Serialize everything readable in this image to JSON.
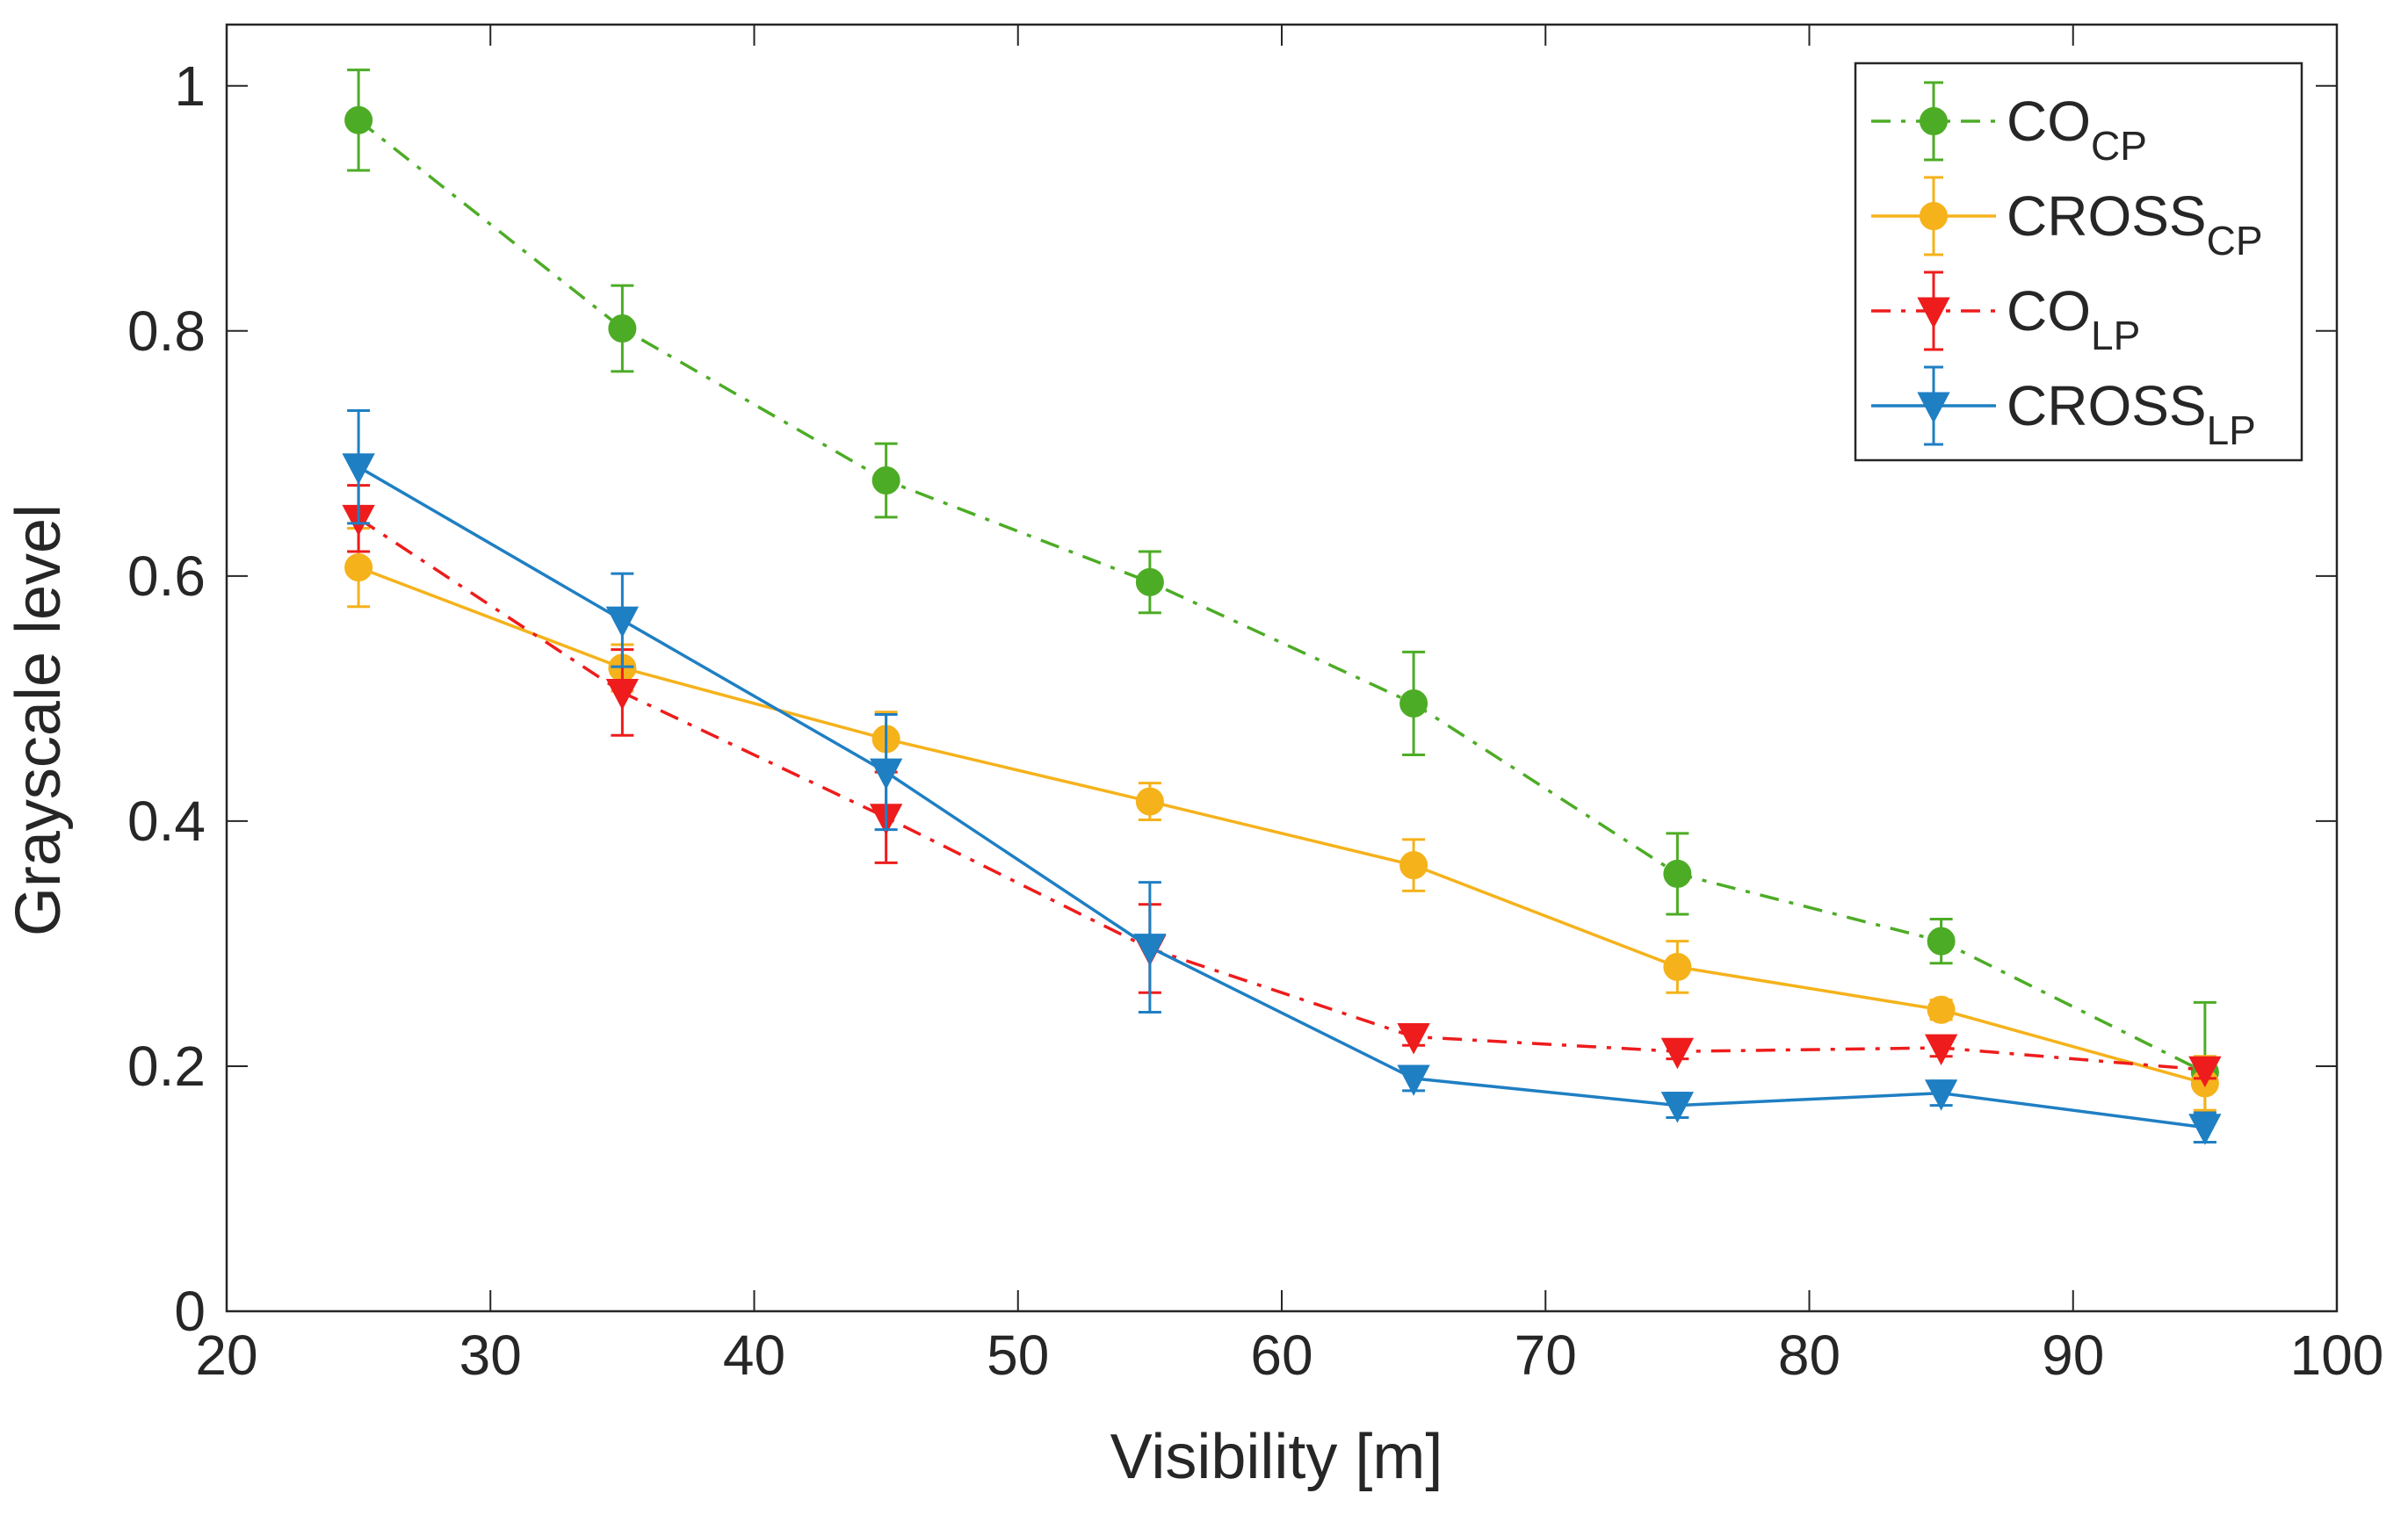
{
  "chart_data": {
    "type": "line",
    "title": "",
    "xlabel": "Visibility [m]",
    "ylabel": "Grayscale level",
    "xlim": [
      20,
      100
    ],
    "ylim": [
      0,
      1.05
    ],
    "x_ticks": [
      20,
      30,
      40,
      50,
      60,
      70,
      80,
      90,
      100
    ],
    "x_tick_labels": [
      "20",
      "30",
      "40",
      "50",
      "60",
      "70",
      "80",
      "90",
      "100"
    ],
    "y_ticks": [
      0,
      0.2,
      0.4,
      0.6,
      0.8,
      1
    ],
    "y_tick_labels": [
      "0",
      "0.2",
      "0.4",
      "0.6",
      "0.8",
      "1"
    ],
    "grid": false,
    "legend_position": "top-right",
    "x": [
      25,
      35,
      45,
      55,
      65,
      75,
      85,
      95
    ],
    "series": [
      {
        "name": "CO",
        "subscript": "CP",
        "color": "#4dac26",
        "line_style": "dash-dot",
        "marker": "circle",
        "values": [
          0.972,
          0.802,
          0.678,
          0.595,
          0.496,
          0.357,
          0.302,
          0.195
        ],
        "errors": [
          0.041,
          0.035,
          0.03,
          0.025,
          0.042,
          0.033,
          0.018,
          0.057
        ]
      },
      {
        "name": "CROSS",
        "subscript": "CP",
        "color": "#f5b21b",
        "line_style": "solid",
        "marker": "circle",
        "values": [
          0.607,
          0.525,
          0.467,
          0.416,
          0.364,
          0.281,
          0.246,
          0.186
        ],
        "errors": [
          0.032,
          0.019,
          0.022,
          0.015,
          0.021,
          0.021,
          0.008,
          0.022
        ]
      },
      {
        "name": "CO",
        "subscript": "LP",
        "color": "#ee1c1c",
        "line_style": "dash-dot",
        "marker": "triangle-down",
        "values": [
          0.647,
          0.505,
          0.403,
          0.296,
          0.224,
          0.212,
          0.215,
          0.197
        ],
        "errors": [
          0.027,
          0.035,
          0.037,
          0.036,
          0.007,
          0.006,
          0.007,
          0.007
        ]
      },
      {
        "name": "CROSS",
        "subscript": "LP",
        "color": "#1f7fc3",
        "line_style": "solid",
        "marker": "triangle-down",
        "values": [
          0.689,
          0.564,
          0.44,
          0.297,
          0.19,
          0.168,
          0.178,
          0.15
        ],
        "errors": [
          0.046,
          0.038,
          0.047,
          0.053,
          0.01,
          0.01,
          0.01,
          0.012
        ]
      }
    ]
  }
}
